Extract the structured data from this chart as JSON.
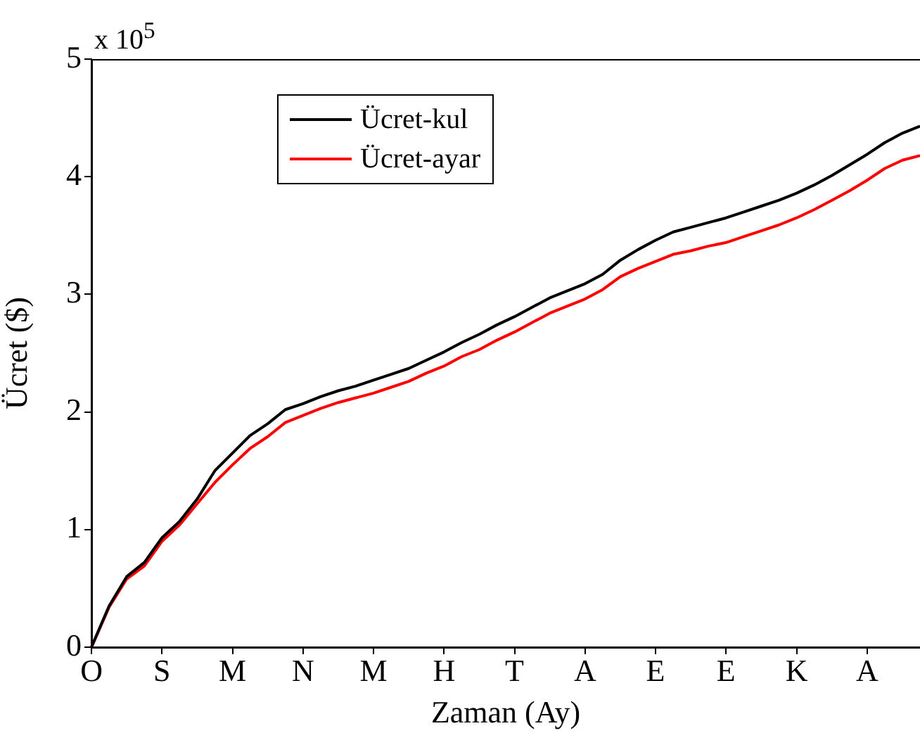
{
  "chart_data": {
    "type": "line",
    "xlabel": "Zaman (Ay)",
    "ylabel": "Ücret ($)",
    "annotations": [
      "x 10$^{5}$"
    ],
    "categories": [
      "O",
      null,
      null,
      null,
      "S",
      null,
      null,
      null,
      "M",
      null,
      null,
      null,
      "N",
      null,
      null,
      null,
      "M",
      null,
      null,
      null,
      "H",
      null,
      null,
      null,
      "T",
      null,
      null,
      null,
      "A",
      null,
      null,
      null,
      "E",
      null,
      null,
      null,
      "E",
      null,
      null,
      null,
      "K",
      null,
      null,
      null,
      "A",
      null,
      null,
      null
    ],
    "series": [
      {
        "name": "Ücret-kul",
        "color": "#000000",
        "values": [
          0,
          0.35,
          0.6,
          0.72,
          0.93,
          1.07,
          1.26,
          1.5,
          1.65,
          1.8,
          1.9,
          2.02,
          2.07,
          2.13,
          2.18,
          2.22,
          2.27,
          2.32,
          2.37,
          2.44,
          2.51,
          2.59,
          2.66,
          2.74,
          2.81,
          2.89,
          2.97,
          3.03,
          3.09,
          3.17,
          3.29,
          3.38,
          3.46,
          3.53,
          3.57,
          3.61,
          3.65,
          3.7,
          3.75,
          3.8,
          3.86,
          3.93,
          4.01,
          4.1,
          4.19,
          4.29,
          4.37,
          4.43
        ]
      },
      {
        "name": "Ücret-ayar",
        "color": "#ff0000",
        "values": [
          0,
          0.34,
          0.58,
          0.69,
          0.9,
          1.04,
          1.22,
          1.4,
          1.55,
          1.69,
          1.79,
          1.91,
          1.97,
          2.03,
          2.08,
          2.12,
          2.16,
          2.21,
          2.26,
          2.33,
          2.39,
          2.47,
          2.53,
          2.61,
          2.68,
          2.76,
          2.84,
          2.9,
          2.96,
          3.04,
          3.15,
          3.22,
          3.28,
          3.34,
          3.37,
          3.41,
          3.44,
          3.49,
          3.54,
          3.59,
          3.65,
          3.72,
          3.8,
          3.88,
          3.97,
          4.07,
          4.14,
          4.18
        ]
      }
    ],
    "ylim": [
      0,
      5
    ],
    "yticks": [
      0,
      1,
      2,
      3,
      4,
      5
    ],
    "grid": false,
    "legend": "top left",
    "marker": "none",
    "line_style": "solid"
  }
}
